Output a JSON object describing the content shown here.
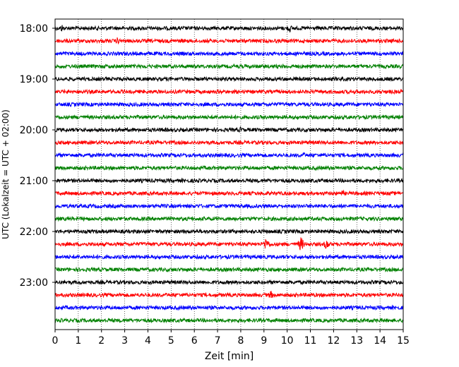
{
  "chart_data": {
    "type": "line",
    "title": "",
    "xlabel": "Zeit  [min]",
    "ylabel": "UTC (Lokalzeit = UTC + 02:00)",
    "xlim": [
      0,
      15
    ],
    "x_ticks": [
      "0",
      "1",
      "2",
      "3",
      "4",
      "5",
      "6",
      "7",
      "8",
      "9",
      "10",
      "11",
      "12",
      "13",
      "14",
      "15"
    ],
    "y_ticks": [
      "18:00",
      "19:00",
      "20:00",
      "21:00",
      "22:00",
      "23:00"
    ],
    "grid": "vertical dotted at each minute",
    "row_interval_minutes": 15,
    "traces": [
      {
        "start": "18:00",
        "color": "#000000",
        "events": [
          [
            0.3,
            6
          ],
          [
            10.1,
            7
          ]
        ]
      },
      {
        "start": "18:15",
        "color": "#ff0000",
        "events": [
          [
            2.7,
            6
          ]
        ]
      },
      {
        "start": "18:30",
        "color": "#0000ff",
        "events": []
      },
      {
        "start": "18:45",
        "color": "#008000",
        "events": []
      },
      {
        "start": "19:00",
        "color": "#000000",
        "events": []
      },
      {
        "start": "19:15",
        "color": "#ff0000",
        "events": []
      },
      {
        "start": "19:30",
        "color": "#0000ff",
        "events": []
      },
      {
        "start": "19:45",
        "color": "#008000",
        "events": [
          [
            1.1,
            4
          ]
        ]
      },
      {
        "start": "20:00",
        "color": "#000000",
        "events": [
          [
            4.7,
            5
          ],
          [
            8.0,
            5
          ]
        ]
      },
      {
        "start": "20:15",
        "color": "#ff0000",
        "events": []
      },
      {
        "start": "20:30",
        "color": "#0000ff",
        "events": [
          [
            10.7,
            5
          ]
        ]
      },
      {
        "start": "20:45",
        "color": "#008000",
        "events": [
          [
            3.4,
            4
          ]
        ]
      },
      {
        "start": "21:00",
        "color": "#000000",
        "events": []
      },
      {
        "start": "21:15",
        "color": "#ff0000",
        "events": [
          [
            9.5,
            4
          ],
          [
            12.4,
            5
          ]
        ]
      },
      {
        "start": "21:30",
        "color": "#0000ff",
        "events": []
      },
      {
        "start": "21:45",
        "color": "#008000",
        "events": []
      },
      {
        "start": "22:00",
        "color": "#000000",
        "events": []
      },
      {
        "start": "22:15",
        "color": "#ff0000",
        "events": [
          [
            9.1,
            11
          ],
          [
            10.6,
            12
          ],
          [
            11.7,
            9
          ]
        ]
      },
      {
        "start": "22:30",
        "color": "#0000ff",
        "events": []
      },
      {
        "start": "22:45",
        "color": "#008000",
        "events": []
      },
      {
        "start": "23:00",
        "color": "#000000",
        "events": [
          [
            0.4,
            4
          ]
        ]
      },
      {
        "start": "23:15",
        "color": "#ff0000",
        "events": [
          [
            9.3,
            7
          ]
        ]
      },
      {
        "start": "23:30",
        "color": "#0000ff",
        "events": []
      },
      {
        "start": "23:45",
        "color": "#008000",
        "events": []
      }
    ]
  }
}
